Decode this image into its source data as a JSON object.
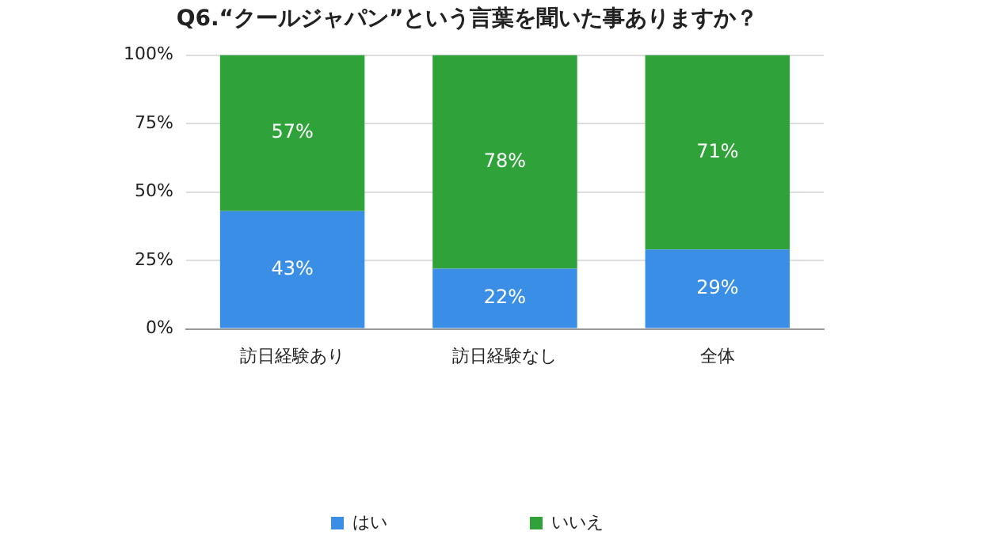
{
  "chart_data": {
    "type": "bar",
    "title": "Q6.“クールジャパン”という言葉を聞いた事ありますか？",
    "categories": [
      "訪日経験あり",
      "訪日経験なし",
      "全体"
    ],
    "stacked": true,
    "series": [
      {
        "name": "はい",
        "color": "#3a8ee6",
        "values": [
          43,
          22,
          29
        ],
        "value_labels": [
          "43%",
          "22%",
          "29%"
        ]
      },
      {
        "name": "いいえ",
        "color": "#2fa33a",
        "values": [
          57,
          78,
          71
        ],
        "value_labels": [
          "57%",
          "78%",
          "71%"
        ]
      }
    ],
    "ylim": [
      0,
      100
    ],
    "yticks": [
      {
        "value": 0,
        "label": "0%"
      },
      {
        "value": 25,
        "label": "25%"
      },
      {
        "value": 50,
        "label": "50%"
      },
      {
        "value": 75,
        "label": "75%"
      },
      {
        "value": 100,
        "label": "100%"
      }
    ],
    "grid": "y",
    "legend": "bottom"
  }
}
